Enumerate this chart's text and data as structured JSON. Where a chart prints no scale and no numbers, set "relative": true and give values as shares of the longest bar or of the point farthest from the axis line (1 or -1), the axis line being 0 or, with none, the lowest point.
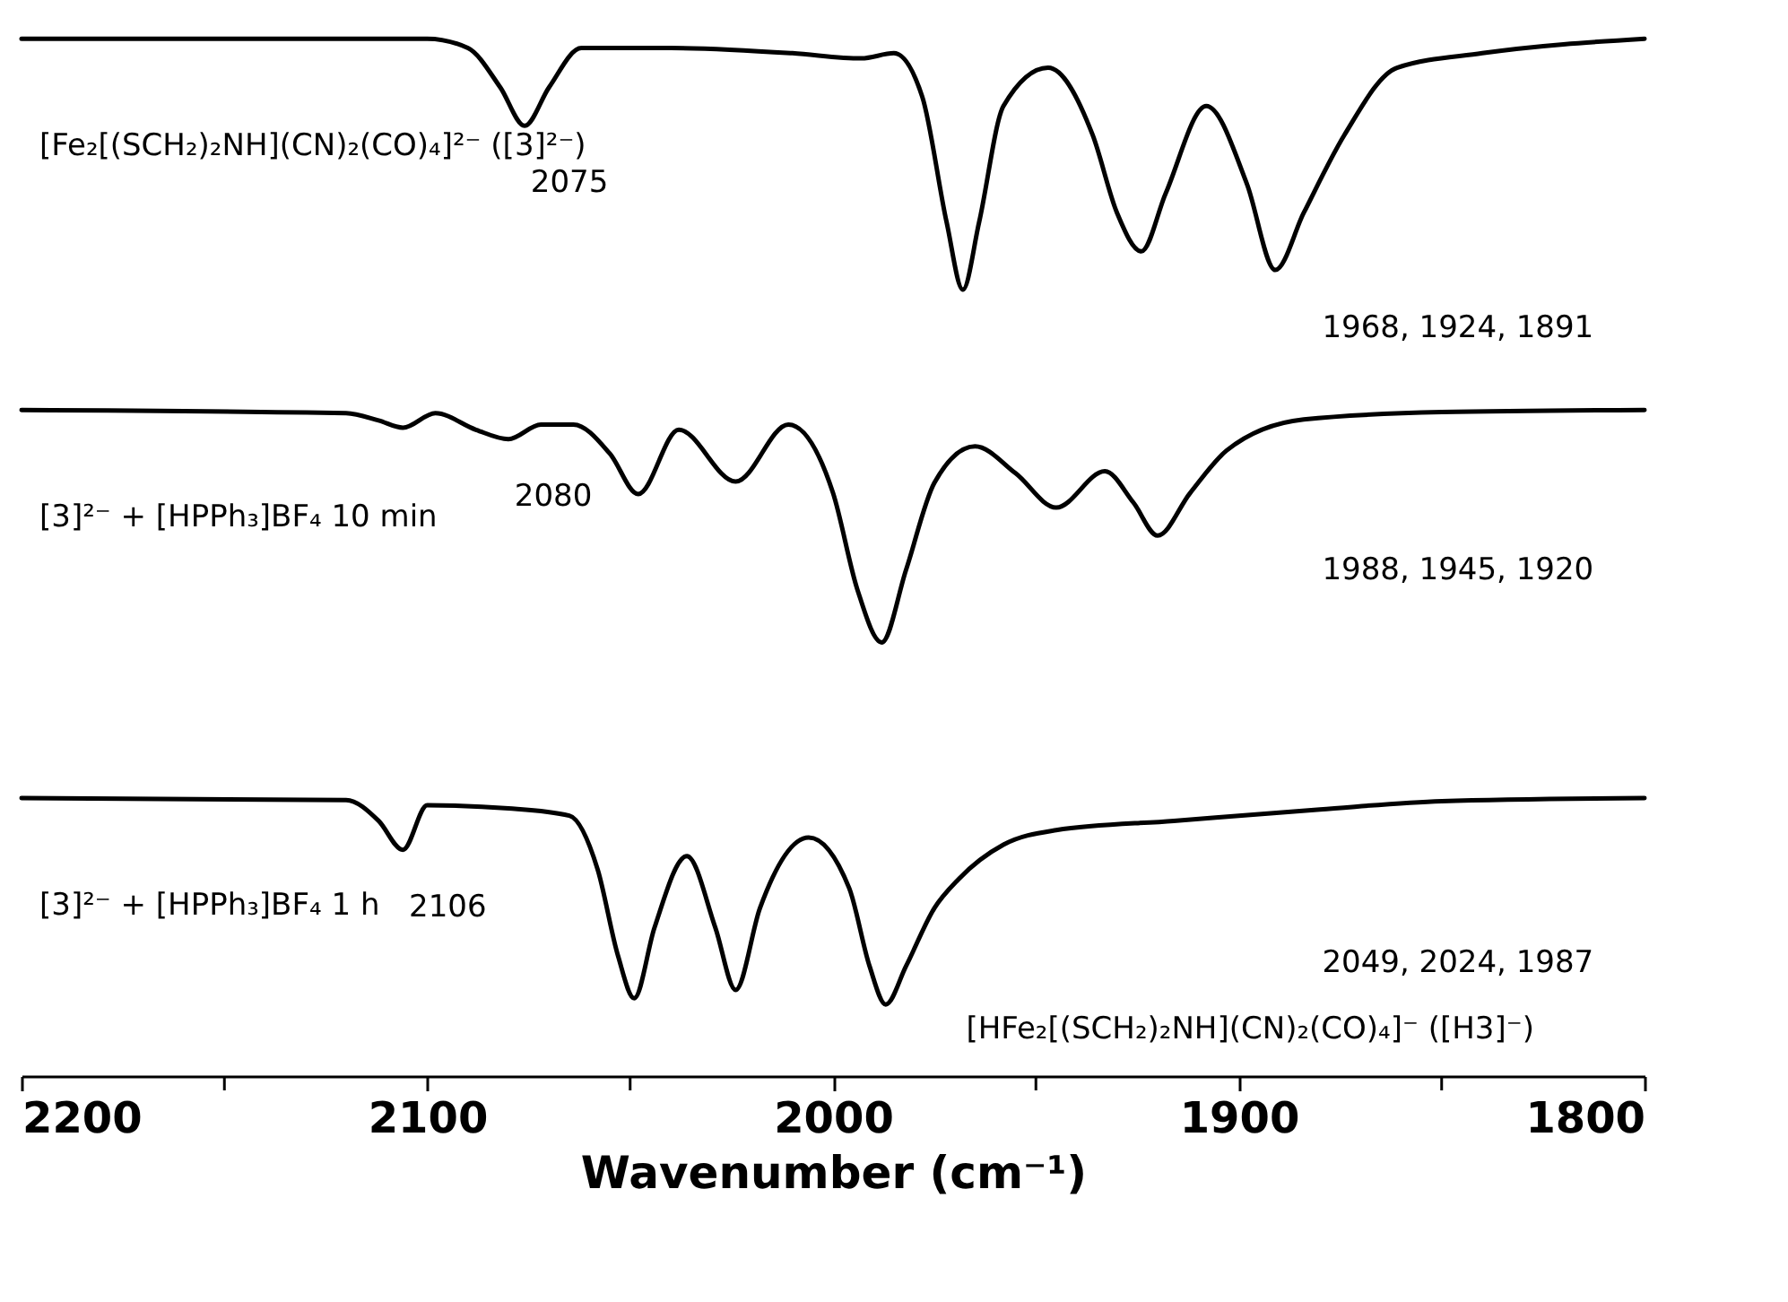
{
  "chart_data": {
    "type": "line",
    "relative": true,
    "xlabel": "Wavenumber (cm⁻¹)",
    "xlim": [
      2200,
      1800
    ],
    "xticks": [
      2200,
      {
        "value": 2150,
        "label": null
      },
      2100,
      {
        "value": 2050,
        "label": null
      },
      2000,
      {
        "value": 1950,
        "label": null
      },
      1900,
      {
        "value": 1850,
        "label": null
      },
      1800
    ],
    "grid": false,
    "tick_labels": "x",
    "marker": "none",
    "line_style": "solid",
    "series": [
      {
        "name": "[Fe₂[(SCH₂)₂NH](CN)₂(CO)₄]²⁻ ([3]²⁻)",
        "color": "#000000",
        "x": [
          2200,
          2100,
          2090,
          2082,
          2076,
          2070,
          2062,
          2040,
          2010,
          1993,
          1985,
          1978,
          1972,
          1968,
          1964,
          1958,
          1947,
          1936,
          1930,
          1924,
          1918,
          1908,
          1898,
          1891,
          1884,
          1874,
          1861,
          1840,
          1800
        ],
        "values": [
          1.0,
          1.0,
          0.991,
          0.953,
          0.916,
          0.953,
          0.991,
          0.991,
          0.986,
          0.981,
          0.986,
          0.944,
          0.823,
          0.758,
          0.823,
          0.935,
          0.972,
          0.907,
          0.832,
          0.795,
          0.851,
          0.935,
          0.86,
          0.777,
          0.832,
          0.907,
          0.972,
          0.986,
          1.0
        ]
      },
      {
        "name": "[3]²⁻ + [HPPh₃]BF₄ 10 min",
        "color": "#000000",
        "x": [
          2200,
          2120,
          2112,
          2106,
          2098,
          2088,
          2080,
          2072,
          2064,
          2055,
          2048,
          2038,
          2024,
          2011,
          2000,
          1994,
          1988,
          1982,
          1975,
          1965,
          1955,
          1945,
          1933,
          1926,
          1920,
          1912,
          1903,
          1884,
          1850,
          1800
        ],
        "values": [
          0.642,
          0.639,
          0.632,
          0.625,
          0.639,
          0.623,
          0.614,
          0.628,
          0.628,
          0.6,
          0.561,
          0.623,
          0.573,
          0.628,
          0.562,
          0.469,
          0.418,
          0.488,
          0.572,
          0.607,
          0.581,
          0.548,
          0.583,
          0.553,
          0.521,
          0.562,
          0.603,
          0.633,
          0.64,
          0.642
        ]
      },
      {
        "name": "[3]²⁻ + [HPPh₃]BF₄ 1 h",
        "color": "#000000",
        "x": [
          2200,
          2120,
          2112,
          2106,
          2100,
          2080,
          2065,
          2058,
          2053,
          2049,
          2044,
          2036,
          2029,
          2024,
          2018,
          2006,
          1996,
          1991,
          1987,
          1982,
          1975,
          1969,
          1958,
          1945,
          1916,
          1880,
          1850,
          1800
        ],
        "values": [
          0.268,
          0.266,
          0.246,
          0.218,
          0.261,
          0.258,
          0.251,
          0.199,
          0.116,
          0.075,
          0.143,
          0.212,
          0.143,
          0.083,
          0.162,
          0.23,
          0.181,
          0.106,
          0.069,
          0.106,
          0.162,
          0.19,
          0.223,
          0.237,
          0.246,
          0.257,
          0.265,
          0.268
        ]
      }
    ],
    "annotations": [
      {
        "text": "2075",
        "x": 2076,
        "y": 0.916
      },
      "1968, 1924, 1891",
      {
        "text": "2080",
        "x": 2080,
        "y": 0.614
      },
      "1988, 1945, 1920",
      {
        "text": "2106",
        "x": 2106,
        "y": 0.218
      },
      "2049, 2024, 1987",
      "[HFe₂[(SCH₂)₂NH](CN)₂(CO)₄]⁻ ([H3]⁻)"
    ]
  }
}
